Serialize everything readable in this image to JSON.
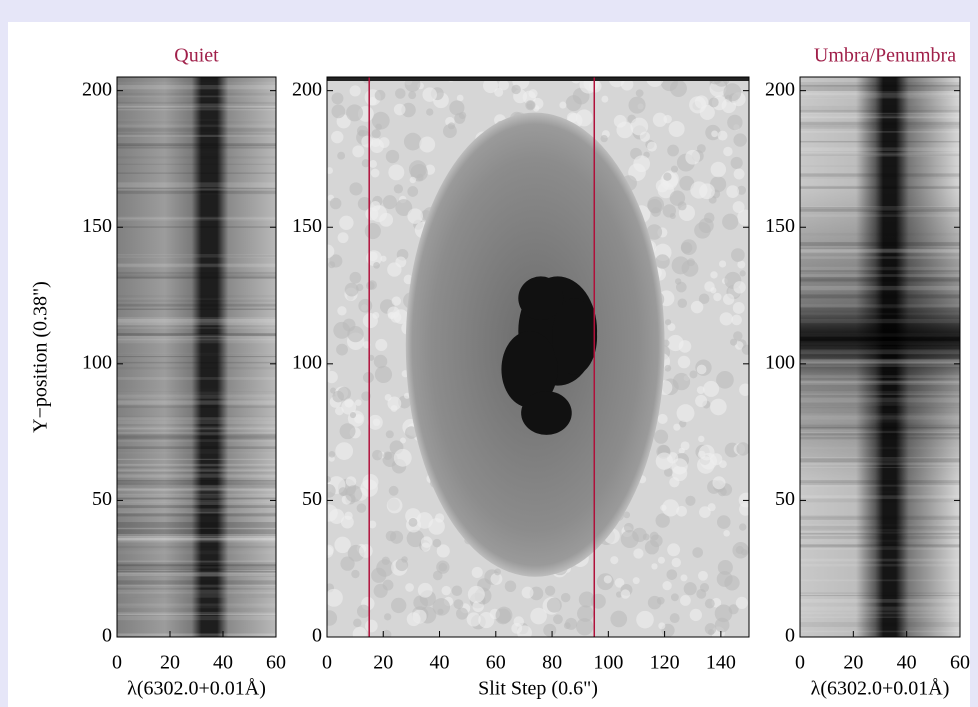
{
  "chart_data": [
    {
      "type": "image",
      "title": "Quiet",
      "xlabel": "λ(6302.0+0.01Å)",
      "ylabel": "Y−position (0.38\")",
      "xlim": [
        0,
        60
      ],
      "ylim": [
        0,
        205
      ],
      "xticks": [
        0,
        20,
        40,
        60
      ],
      "yticks": [
        0,
        50,
        100,
        150,
        200
      ]
    },
    {
      "type": "image",
      "xlabel": "Slit Step (0.6\")",
      "xlim": [
        0,
        150
      ],
      "ylim": [
        0,
        205
      ],
      "xticks": [
        0,
        20,
        40,
        60,
        80,
        100,
        120,
        140
      ],
      "yticks": [
        0,
        50,
        100,
        150,
        200
      ],
      "vlines": [
        15,
        95
      ],
      "vline_color": "#b0103a"
    },
    {
      "type": "image",
      "title": "Umbra/Penumbra",
      "xlabel": "λ(6302.0+0.01Å)",
      "xlim": [
        0,
        60
      ],
      "ylim": [
        0,
        205
      ],
      "xticks": [
        0,
        20,
        40,
        60
      ],
      "yticks": [
        0,
        50,
        100,
        150,
        200
      ]
    }
  ]
}
